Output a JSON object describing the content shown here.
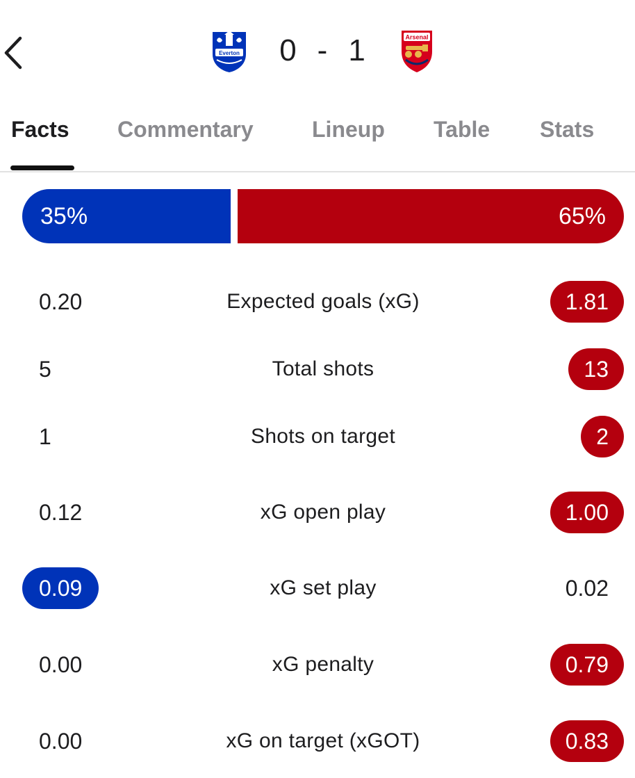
{
  "match": {
    "home_team": "Everton",
    "away_team": "Arsenal",
    "home_score": "0",
    "separator": "-",
    "away_score": "1",
    "home_color": "#0033b8",
    "away_color": "#b4000e"
  },
  "tabs": [
    {
      "label": "Facts",
      "active": true
    },
    {
      "label": "Commentary",
      "active": false
    },
    {
      "label": "Lineup",
      "active": false
    },
    {
      "label": "Table",
      "active": false
    },
    {
      "label": "Stats",
      "active": false
    }
  ],
  "possession": {
    "home_label": "35%",
    "away_label": "65%",
    "home_value": 35,
    "away_value": 65
  },
  "stats": [
    {
      "home": "0.20",
      "label": "Expected goals (xG)",
      "away": "1.81",
      "highlight": "away"
    },
    {
      "home": "5",
      "label": "Total shots",
      "away": "13",
      "highlight": "away"
    },
    {
      "home": "1",
      "label": "Shots on target",
      "away": "2",
      "highlight": "away"
    },
    {
      "home": "0.12",
      "label": "xG open play",
      "away": "1.00",
      "highlight": "away"
    },
    {
      "home": "0.09",
      "label": "xG set play",
      "away": "0.02",
      "highlight": "home"
    },
    {
      "home": "0.00",
      "label": "xG penalty",
      "away": "0.79",
      "highlight": "away"
    },
    {
      "home": "0.00",
      "label": "xG on target (xGOT)",
      "away": "0.83",
      "highlight": "away"
    }
  ],
  "icons": {
    "back": "chevron-left-icon",
    "home_crest": "everton-crest-icon",
    "away_crest": "arsenal-crest-icon"
  }
}
